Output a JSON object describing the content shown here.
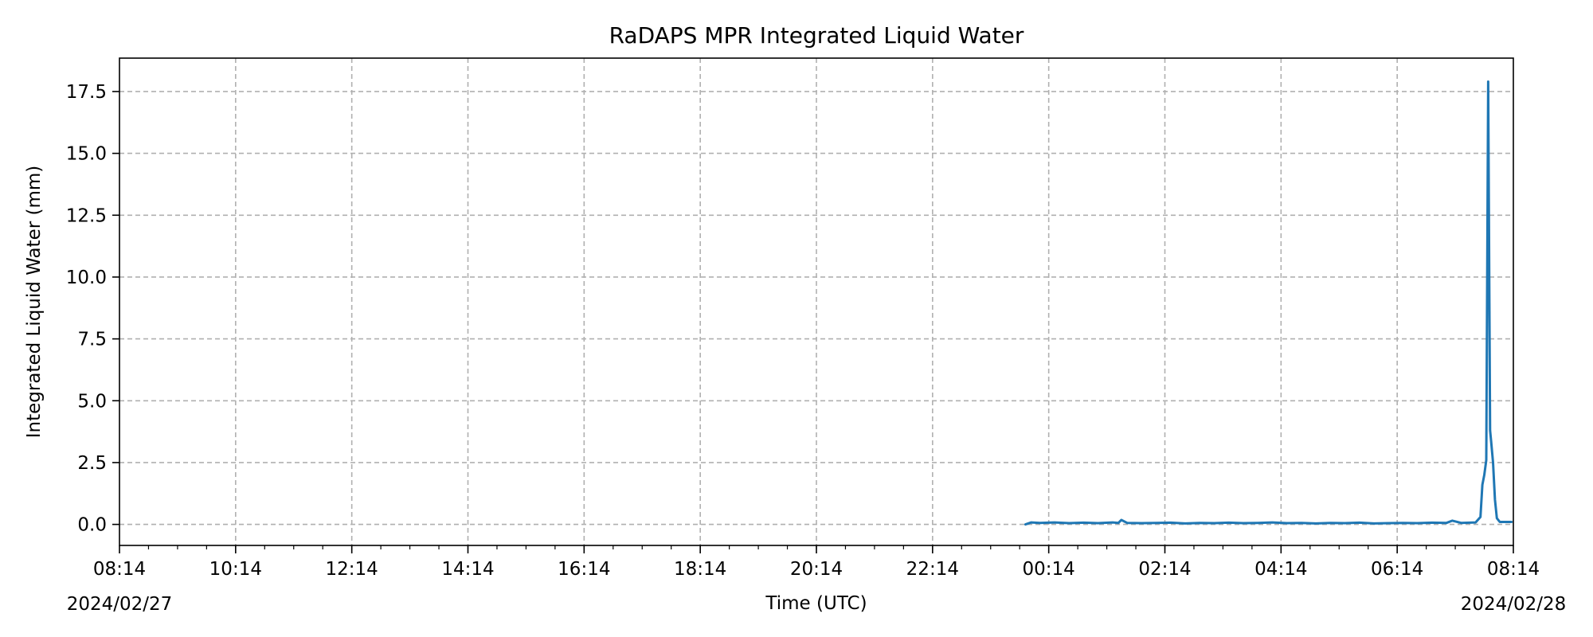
{
  "chart_data": {
    "type": "line",
    "title": "RaDAPS MPR Integrated Liquid Water",
    "xlabel": "Time (UTC)",
    "ylabel": "Integrated Liquid Water (mm)",
    "x_start_label": "2024/02/27",
    "x_end_label": "2024/02/28",
    "xticks": [
      "08:14",
      "10:14",
      "12:14",
      "14:14",
      "16:14",
      "18:14",
      "20:14",
      "22:14",
      "00:14",
      "02:14",
      "04:14",
      "06:14",
      "08:14"
    ],
    "xlim": [
      "2024-02-27 08:14",
      "2024-02-28 08:14"
    ],
    "yticks": [
      "0.0",
      "2.5",
      "5.0",
      "7.5",
      "10.0",
      "12.5",
      "15.0",
      "17.5"
    ],
    "ylim": [
      -0.85,
      18.85
    ],
    "grid": true,
    "line_color": "#1f77b4",
    "series": [
      {
        "x": [
          "2024-02-27 23:50",
          "2024-02-27 23:56",
          "2024-02-28 00:05",
          "2024-02-28 00:20",
          "2024-02-28 00:35",
          "2024-02-28 00:50",
          "2024-02-28 01:05",
          "2024-02-28 01:20",
          "2024-02-28 01:26",
          "2024-02-28 01:29",
          "2024-02-28 01:35",
          "2024-02-28 01:50",
          "2024-02-28 02:05",
          "2024-02-28 02:20",
          "2024-02-28 02:35",
          "2024-02-28 02:50",
          "2024-02-28 03:05",
          "2024-02-28 03:20",
          "2024-02-28 03:35",
          "2024-02-28 03:50",
          "2024-02-28 04:05",
          "2024-02-28 04:20",
          "2024-02-28 04:35",
          "2024-02-28 04:50",
          "2024-02-28 05:05",
          "2024-02-28 05:20",
          "2024-02-28 05:35",
          "2024-02-28 05:50",
          "2024-02-28 06:05",
          "2024-02-28 06:20",
          "2024-02-28 06:35",
          "2024-02-28 06:50",
          "2024-02-28 07:05",
          "2024-02-28 07:11",
          "2024-02-28 07:20",
          "2024-02-28 07:35",
          "2024-02-28 07:40",
          "2024-02-28 07:42",
          "2024-02-28 07:44",
          "2024-02-28 07:46",
          "2024-02-28 07:48",
          "2024-02-28 07:50",
          "2024-02-28 07:51",
          "2024-02-28 07:53",
          "2024-02-28 07:55",
          "2024-02-28 07:57",
          "2024-02-28 08:00",
          "2024-02-28 08:05",
          "2024-02-28 08:12"
        ],
        "y": [
          0.0,
          0.08,
          0.06,
          0.08,
          0.05,
          0.07,
          0.05,
          0.08,
          0.06,
          0.18,
          0.06,
          0.05,
          0.06,
          0.07,
          0.04,
          0.06,
          0.05,
          0.07,
          0.05,
          0.06,
          0.08,
          0.05,
          0.06,
          0.04,
          0.06,
          0.05,
          0.07,
          0.04,
          0.05,
          0.06,
          0.05,
          0.07,
          0.06,
          0.15,
          0.06,
          0.08,
          0.3,
          1.6,
          2.0,
          2.6,
          17.9,
          3.8,
          3.4,
          2.5,
          1.0,
          0.25,
          0.1,
          0.1,
          0.1
        ]
      }
    ]
  }
}
